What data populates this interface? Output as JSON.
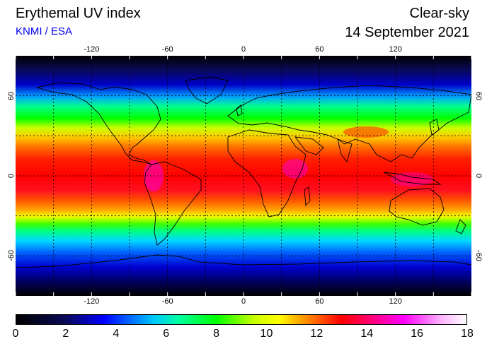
{
  "header": {
    "title": "Erythemal UV index",
    "source": "KNMI / ESA",
    "mode": "Clear-sky",
    "date": "14 September 2021"
  },
  "map": {
    "lon_ticks": [
      "-120",
      "-60",
      "0",
      "60",
      "120"
    ],
    "lat_ticks": [
      "60",
      "0",
      "-60"
    ],
    "lon_range": [
      -180,
      180
    ],
    "lat_range": [
      -90,
      90
    ],
    "grid": true,
    "gridline_style": "dotted",
    "coastline_color": "#000000"
  },
  "colorbar": {
    "labels": [
      "0",
      "2",
      "4",
      "6",
      "8",
      "10",
      "12",
      "14",
      "16",
      "18"
    ],
    "range": [
      0,
      18
    ],
    "stops": [
      {
        "v": 0,
        "c": "#000000"
      },
      {
        "v": 2,
        "c": "#0a0a5a"
      },
      {
        "v": 3.5,
        "c": "#0000ff"
      },
      {
        "v": 5.5,
        "c": "#00c8ff"
      },
      {
        "v": 6.5,
        "c": "#00ffa0"
      },
      {
        "v": 8,
        "c": "#00ff00"
      },
      {
        "v": 9.5,
        "c": "#c8ff00"
      },
      {
        "v": 10.5,
        "c": "#ffff00"
      },
      {
        "v": 11.5,
        "c": "#ff9600"
      },
      {
        "v": 13,
        "c": "#ff0000"
      },
      {
        "v": 14,
        "c": "#ff0064"
      },
      {
        "v": 15.5,
        "c": "#ff00ff"
      },
      {
        "v": 17,
        "c": "#ffb4ff"
      },
      {
        "v": 18,
        "c": "#ffffff"
      }
    ]
  }
}
